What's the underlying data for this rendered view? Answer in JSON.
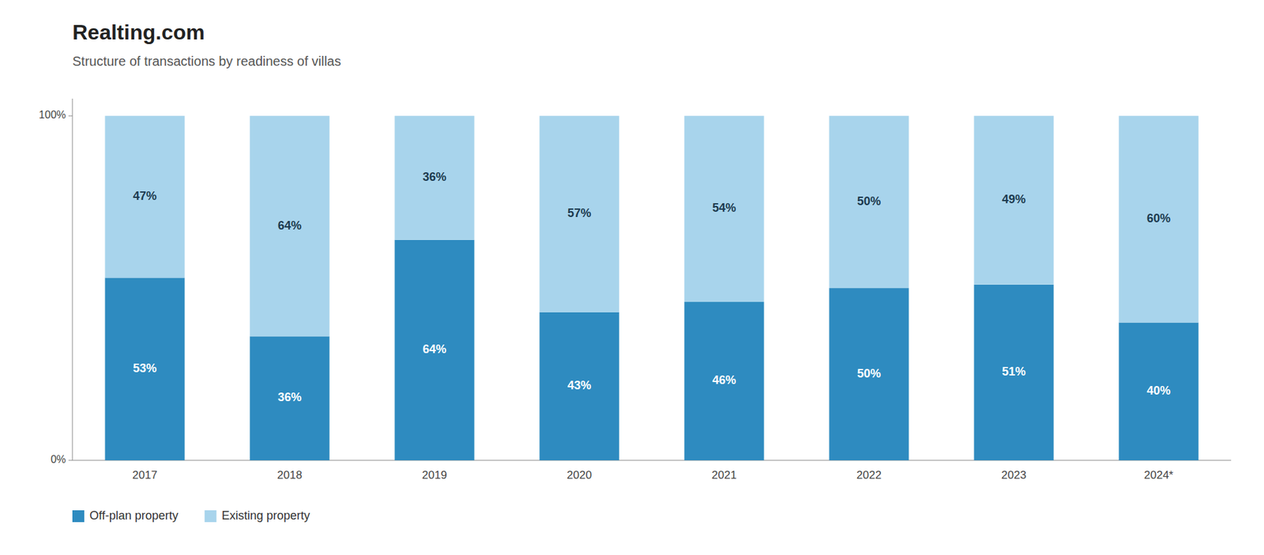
{
  "chart_data": {
    "type": "bar",
    "stacked": true,
    "title": "Realting.com",
    "subtitle": "Structure of transactions by readiness of villas",
    "categories": [
      "2017",
      "2018",
      "2019",
      "2020",
      "2021",
      "2022",
      "2023",
      "2024*"
    ],
    "series": [
      {
        "name": "Off-plan property",
        "color": "#2E8BC0",
        "values": [
          53,
          36,
          64,
          43,
          46,
          50,
          51,
          40
        ],
        "value_labels": [
          "53%",
          "36%",
          "64%",
          "43%",
          "46%",
          "50%",
          "51%",
          "40%"
        ]
      },
      {
        "name": "Existing property",
        "color": "#A8D4EC",
        "values": [
          47,
          64,
          36,
          57,
          54,
          50,
          49,
          60
        ],
        "value_labels": [
          "47%",
          "64%",
          "36%",
          "57%",
          "54%",
          "50%",
          "49%",
          "60%"
        ]
      }
    ],
    "ylim": [
      0,
      105
    ],
    "yticks": [
      {
        "value": 0,
        "label": "0%"
      },
      {
        "value": 100,
        "label": "100%"
      }
    ],
    "grid": false,
    "legend": "lower left",
    "data_labels": true
  }
}
